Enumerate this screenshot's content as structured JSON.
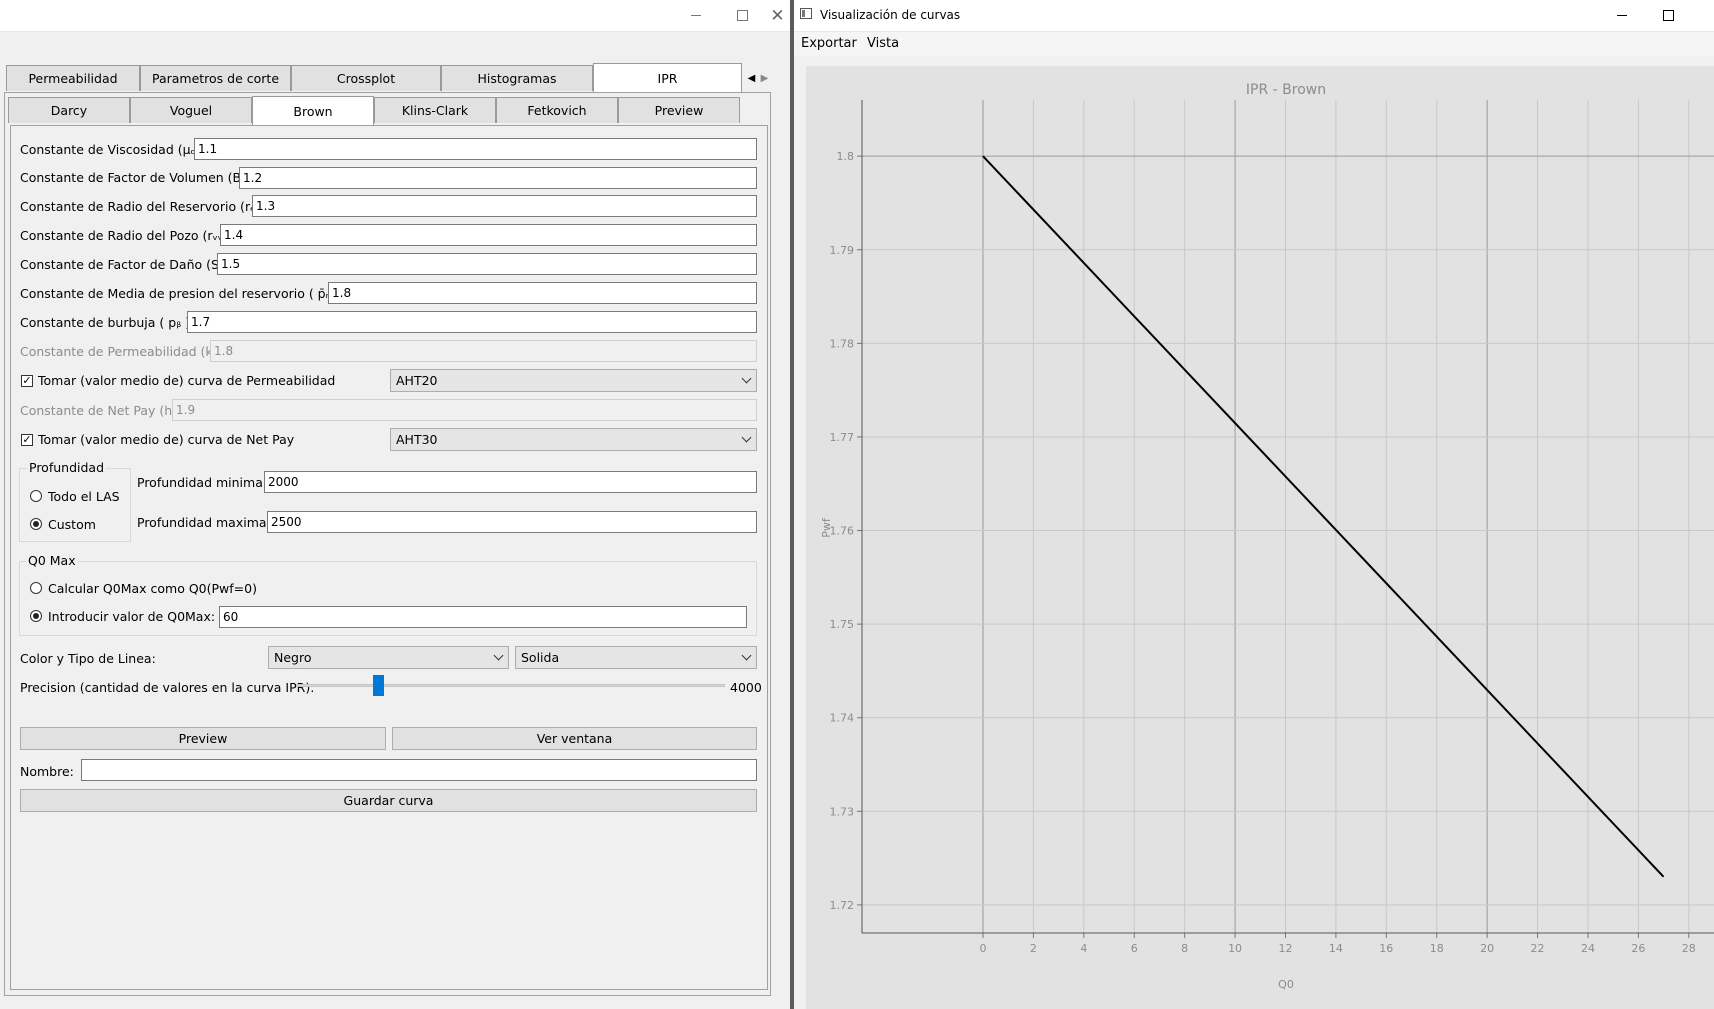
{
  "left_window": {
    "main_tabs": [
      "Permeabilidad",
      "Parametros de corte",
      "Crossplot",
      "Histogramas",
      "IPR"
    ],
    "sub_tabs": [
      "Darcy",
      "Voguel",
      "Brown",
      "Klins-Clark",
      "Fetkovich",
      "Preview"
    ],
    "fields": [
      {
        "label": "Constante de Viscosidad (μₒ):",
        "value": "1.1"
      },
      {
        "label": "Constante de Factor de Volumen (Bₒ):",
        "value": "1.2"
      },
      {
        "label": "Constante de Radio del Reservorio (rₑ):",
        "value": "1.3"
      },
      {
        "label": "Constante de Radio del Pozo (rᵥᵥ):",
        "value": "1.4"
      },
      {
        "label": "Constante de Factor de Daño (S):",
        "value": "1.5"
      },
      {
        "label": "Constante de Media de presion del reservorio ( p̄ᵣ ):",
        "value": "1.8"
      },
      {
        "label": "Constante de burbuja ( pᵦ ):",
        "value": "1.7"
      }
    ],
    "perm_field": {
      "label": "Constante de Permeabilidad (k):",
      "value": "1.8"
    },
    "perm_check": {
      "label": "Tomar (valor medio de) curva de Permeabilidad",
      "combo": "AHT20"
    },
    "netpay_field": {
      "label": "Constante de Net Pay (h):",
      "value": "1.9"
    },
    "netpay_check": {
      "label": "Tomar (valor medio de) curva de Net Pay",
      "combo": "AHT30"
    },
    "profundidad": {
      "title": "Profundidad",
      "opt_all": "Todo el LAS",
      "opt_custom": "Custom",
      "min_label": "Profundidad minima:",
      "min_value": "2000",
      "max_label": "Profundidad maxima:",
      "max_value": "2500"
    },
    "q0max": {
      "title": "Q0 Max",
      "opt_calc": "Calcular Q0Max como Q0(Pwf=0)",
      "opt_input": "Introducir valor de Q0Max:",
      "value": "60"
    },
    "line": {
      "label": "Color y Tipo de Linea:",
      "color": "Negro",
      "style": "Solida"
    },
    "precision": {
      "label": "Precision (cantidad de valores en la curva IPR):",
      "value": "4000",
      "slider_fraction": 0.19
    },
    "buttons": {
      "preview": "Preview",
      "window": "Ver ventana",
      "save": "Guardar curva"
    },
    "name_label": "Nombre:",
    "name_value": ""
  },
  "right_window": {
    "title": "Visualización de curvas",
    "menu": [
      "Exportar",
      "Vista"
    ]
  },
  "chart_data": {
    "type": "line",
    "title": "IPR - Brown",
    "xlabel": "Q0",
    "ylabel": "Pwf",
    "xlim": [
      -4.8,
      29
    ],
    "ylim": [
      1.717,
      1.806
    ],
    "x_ticks": [
      0,
      2,
      4,
      6,
      8,
      10,
      12,
      14,
      16,
      18,
      20,
      22,
      24,
      26,
      28
    ],
    "y_ticks": [
      1.72,
      1.73,
      1.74,
      1.75,
      1.76,
      1.77,
      1.78,
      1.79,
      1.8
    ],
    "grid": true,
    "series": [
      {
        "color": "#000000",
        "x": [
          0,
          27
        ],
        "y": [
          1.8,
          1.723
        ]
      }
    ]
  }
}
